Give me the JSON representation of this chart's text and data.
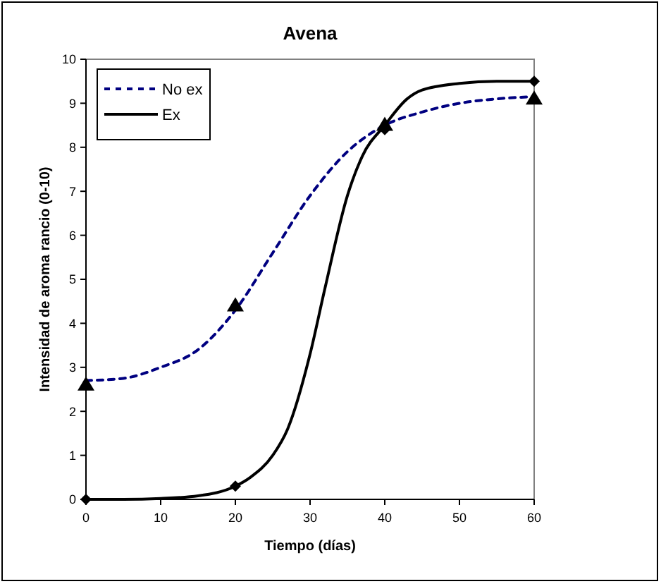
{
  "chart_data": {
    "type": "line",
    "title": "Avena",
    "xlabel": "Tiempo (días)",
    "ylabel": "Intensidad de aroma rancio (0-10)",
    "xlim": [
      0,
      60
    ],
    "xticks": [
      0,
      10,
      20,
      30,
      40,
      50,
      60
    ],
    "ylim": [
      0,
      10
    ],
    "yticks": [
      0,
      1,
      2,
      3,
      4,
      5,
      6,
      7,
      8,
      9,
      10
    ],
    "grid": false,
    "legend": "top left",
    "series": [
      {
        "name": "No ex",
        "color": "#000080",
        "line_style": "dashed",
        "marker": "none",
        "x": [
          0,
          5,
          10,
          15,
          20,
          25,
          30,
          35,
          40,
          45,
          50,
          55,
          60
        ],
        "values": [
          2.7,
          2.75,
          3.0,
          3.4,
          4.3,
          5.6,
          6.9,
          7.9,
          8.5,
          8.8,
          9.0,
          9.1,
          9.15
        ]
      },
      {
        "name": "Ex",
        "color": "#000000",
        "line_style": "solid",
        "marker": "none",
        "x": [
          0,
          5,
          10,
          15,
          20,
          22,
          25,
          27,
          30,
          32,
          35,
          37,
          40,
          43,
          45,
          50,
          55,
          60
        ],
        "values": [
          0,
          0,
          0.02,
          0.08,
          0.3,
          0.5,
          1.0,
          1.6,
          3.3,
          4.8,
          6.9,
          7.8,
          8.5,
          9.1,
          9.3,
          9.45,
          9.5,
          9.5
        ]
      },
      {
        "type": "scatter",
        "color": "#000000",
        "marker": "triangle",
        "x": [
          0,
          20,
          40,
          60
        ],
        "values": [
          2.6,
          4.4,
          8.5,
          9.1
        ]
      },
      {
        "type": "scatter",
        "color": "#000000",
        "marker": "diamond",
        "x": [
          0,
          20,
          40,
          60
        ],
        "values": [
          0,
          0.3,
          8.4,
          9.5
        ]
      }
    ]
  }
}
